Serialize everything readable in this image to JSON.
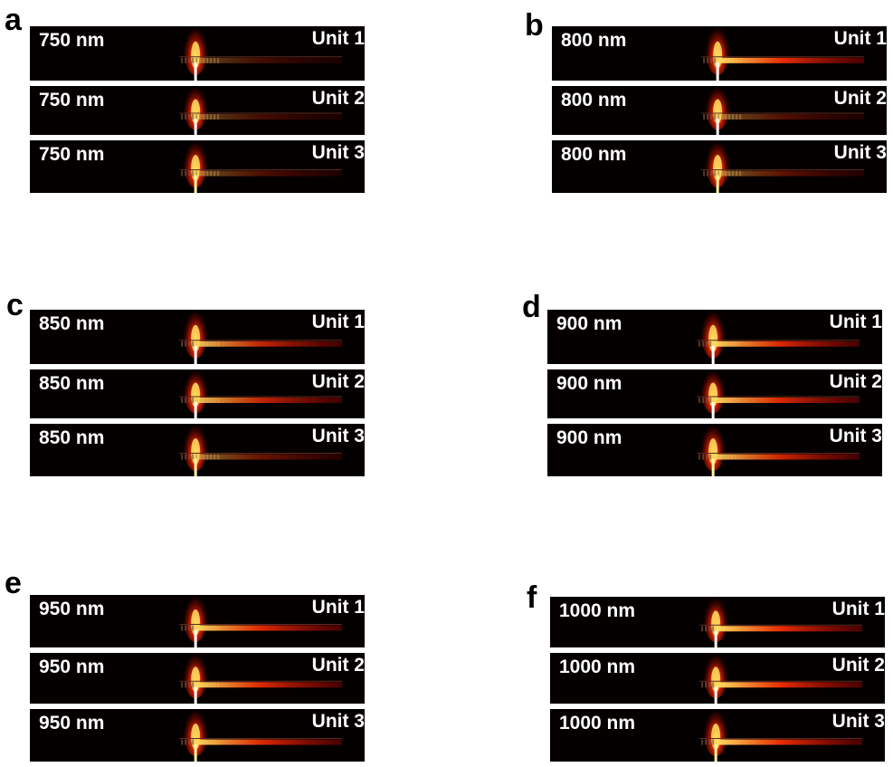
{
  "panels": [
    {
      "id": "a",
      "letter": "a",
      "wavelength_label": "750 nm",
      "units": [
        "Unit 1",
        "Unit 2",
        "Unit 3"
      ],
      "coupled_intensity": [
        0.25,
        0.25,
        0.3
      ]
    },
    {
      "id": "b",
      "letter": "b",
      "wavelength_label": "800 nm",
      "units": [
        "Unit 1",
        "Unit 2",
        "Unit 3"
      ],
      "coupled_intensity": [
        0.9,
        0.3,
        0.35
      ]
    },
    {
      "id": "c",
      "letter": "c",
      "wavelength_label": "850 nm",
      "units": [
        "Unit 1",
        "Unit 2",
        "Unit 3"
      ],
      "coupled_intensity": [
        0.75,
        0.75,
        0.4
      ]
    },
    {
      "id": "d",
      "letter": "d",
      "wavelength_label": "900 nm",
      "units": [
        "Unit 1",
        "Unit 2",
        "Unit 3"
      ],
      "coupled_intensity": [
        0.85,
        0.85,
        0.8
      ]
    },
    {
      "id": "e",
      "letter": "e",
      "wavelength_label": "950 nm",
      "units": [
        "Unit 1",
        "Unit 2",
        "Unit 3"
      ],
      "coupled_intensity": [
        0.85,
        0.85,
        0.85
      ]
    },
    {
      "id": "f",
      "letter": "f",
      "wavelength_label": "1000 nm",
      "units": [
        "Unit 1",
        "Unit 2",
        "Unit 3"
      ],
      "coupled_intensity": [
        0.9,
        0.9,
        0.9
      ]
    }
  ],
  "colors": {
    "background": "#050000",
    "field_hot": "#ffe060",
    "field_mid": "#ff3000",
    "field_dark": "#a00000",
    "text": "#ffffff",
    "letter": "#000000"
  }
}
